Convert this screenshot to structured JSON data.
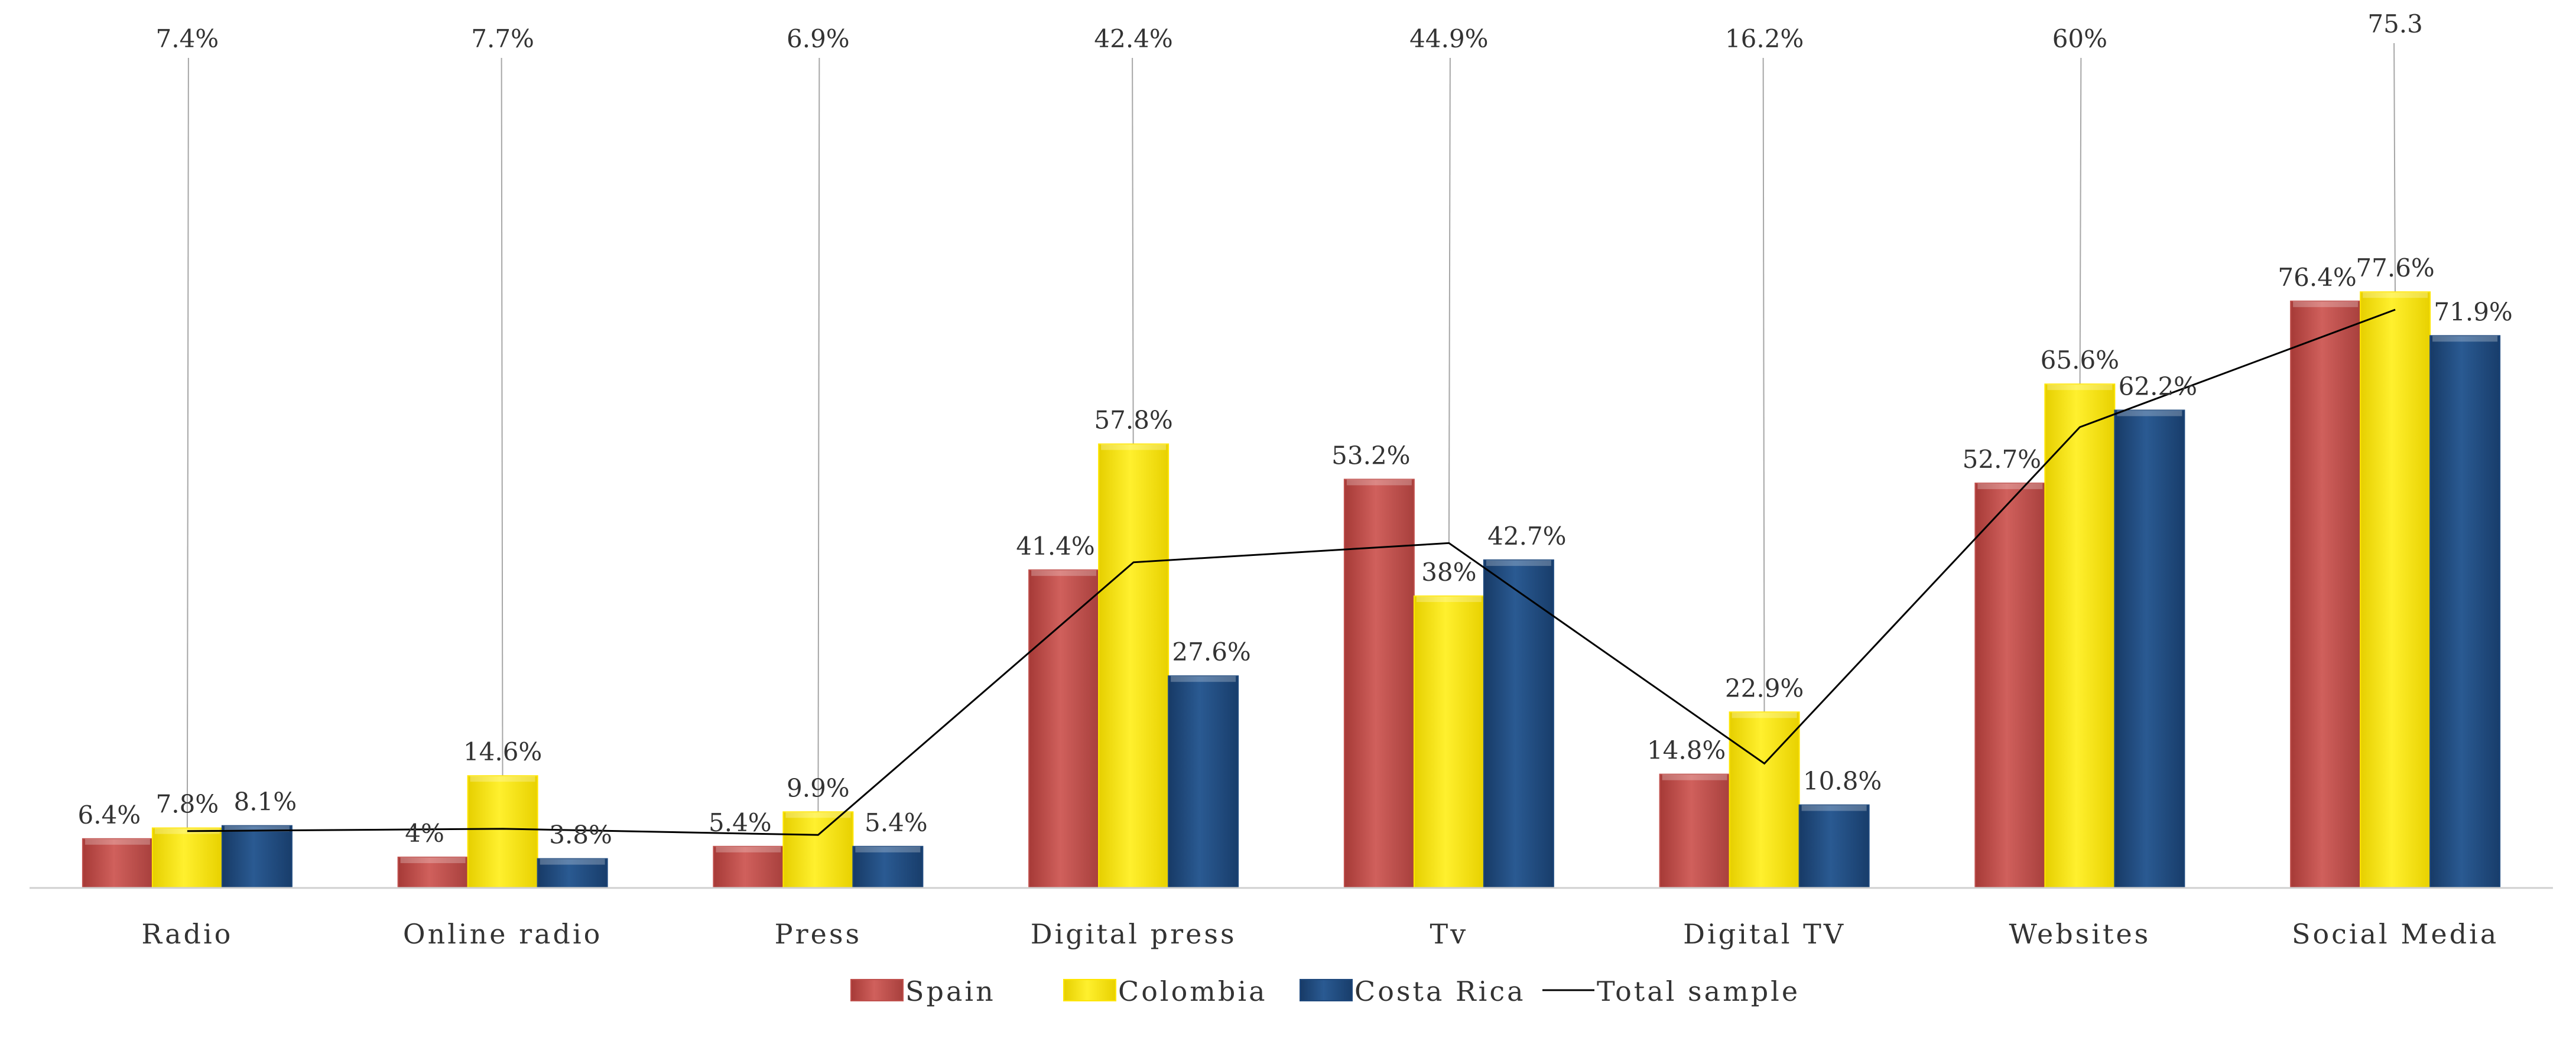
{
  "chart_data": {
    "type": "bar",
    "title": "",
    "xlabel": "",
    "ylabel": "",
    "ylim": [
      0,
      90
    ],
    "grid": false,
    "legend": "bottom",
    "categories": [
      "Radio",
      "Online radio",
      "Press",
      "Digital press",
      "Tv",
      "Digital TV",
      "Websites",
      "Social Media"
    ],
    "series": [
      {
        "name": "Spain",
        "color": "#C0504D",
        "values": [
          6.4,
          4,
          5.4,
          41.4,
          53.2,
          14.8,
          52.7,
          76.4
        ],
        "labels": [
          "6.4%",
          "4%",
          "5.4%",
          "41.4%",
          "53.2%",
          "14.8%",
          "52.7%",
          "76.4%"
        ]
      },
      {
        "name": "Colombia",
        "color": "#FFE600",
        "values": [
          7.8,
          14.6,
          9.9,
          57.8,
          38,
          22.9,
          65.6,
          77.6
        ],
        "labels": [
          "7.8%",
          "14.6%",
          "9.9%",
          "57.8%",
          "38%",
          "22.9%",
          "65.6%",
          "77.6%"
        ]
      },
      {
        "name": "Costa Rica",
        "color": "#1F497D",
        "values": [
          8.1,
          3.8,
          5.4,
          27.6,
          42.7,
          10.8,
          62.2,
          71.9
        ],
        "labels": [
          "8.1%",
          "3.8%",
          "5.4%",
          "27.6%",
          "42.7%",
          "10.8%",
          "62.2%",
          "71.9%"
        ]
      }
    ],
    "line_series": {
      "name": "Total sample",
      "type": "line",
      "color": "#000000",
      "values": [
        7.4,
        7.7,
        6.9,
        42.4,
        44.9,
        16.2,
        60,
        75.3
      ],
      "labels": [
        "7.4%",
        "7.7%",
        "6.9%",
        "42.4%",
        "44.9%",
        "16.2%",
        "60%",
        "75.3"
      ]
    }
  }
}
